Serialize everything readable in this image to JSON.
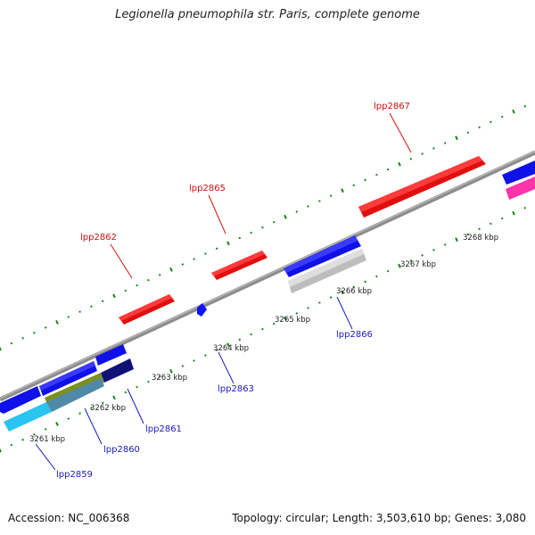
{
  "title": "Legionella pneumophila str. Paris, complete genome",
  "footer": {
    "accession": "Accession: NC_006368",
    "topology": "Topology: circular; Length: 3,503,610 bp; Genes: 3,080"
  },
  "colors": {
    "forward_gene": "#ff1a1a",
    "reverse_gene": "#1010ff",
    "backbone": "#8c8c8c",
    "tick": "#138813",
    "forward_label": "#cc1111",
    "reverse_label": "#1a1ab8",
    "magenta_gene": "#ff33aa",
    "cyan_gene": "#29c4ef",
    "olive_gene": "#7b8f22",
    "navy_gene": "#111177",
    "gray_gene": "#bdbdbd"
  },
  "scale_labels": [
    "3261 kbp",
    "3262 kbp",
    "3263 kbp",
    "3264 kbp",
    "3265 kbp",
    "3266 kbp",
    "3267 kbp",
    "3268 kbp"
  ],
  "forward_genes": [
    {
      "name": "lpp2862"
    },
    {
      "name": "lpp2865"
    },
    {
      "name": "lpp2867"
    }
  ],
  "reverse_genes": [
    {
      "name": "lpp2859"
    },
    {
      "name": "lpp2860"
    },
    {
      "name": "lpp2861"
    },
    {
      "name": "lpp2863"
    },
    {
      "name": "lpp2866"
    }
  ]
}
